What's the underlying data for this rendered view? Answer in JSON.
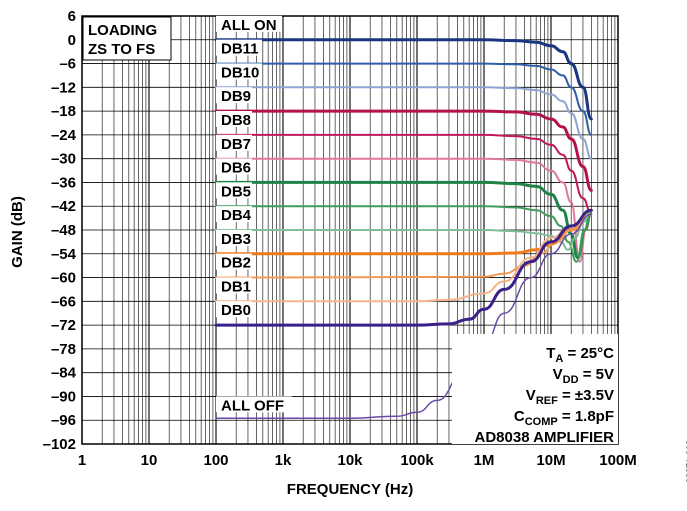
{
  "figure_id": "08271-002",
  "chart_data": {
    "type": "line",
    "title": "",
    "xlabel": "FREQUENCY (Hz)",
    "ylabel": "GAIN (dB)",
    "x_scale": "log",
    "xlim": [
      1,
      100000000
    ],
    "ylim": [
      -102,
      6
    ],
    "x_ticks": [
      1,
      10,
      100,
      1000,
      10000,
      100000,
      1000000,
      10000000,
      100000000
    ],
    "x_tick_labels": [
      "1",
      "10",
      "100",
      "1k",
      "10k",
      "100k",
      "1M",
      "10M",
      "100M"
    ],
    "y_ticks": [
      6,
      0,
      -6,
      -12,
      -18,
      -24,
      -30,
      -36,
      -42,
      -48,
      -54,
      -60,
      -66,
      -72,
      -78,
      -84,
      -90,
      -96,
      -102
    ],
    "y_tick_labels": [
      "6",
      "0",
      "–6",
      "–12",
      "–18",
      "–24",
      "–30",
      "–36",
      "–42",
      "–48",
      "–54",
      "–60",
      "–66",
      "–72",
      "–78",
      "–84",
      "–90",
      "–96",
      "–102"
    ],
    "grid": true,
    "annotation_top_left": [
      "LOADING",
      "ZS TO FS"
    ],
    "conditions": [
      {
        "main": "T",
        "sub": "A",
        "rest": " = 25°C"
      },
      {
        "main": "V",
        "sub": "DD",
        "rest": " = 5V"
      },
      {
        "main": "V",
        "sub": "REF",
        "rest": " = ±3.5V"
      },
      {
        "main": "C",
        "sub": "COMP",
        "rest": " = 1.8pF"
      },
      {
        "main": "AD8038 AMPLIFIER",
        "sub": "",
        "rest": ""
      }
    ],
    "series": [
      {
        "name": "ALL ON",
        "color": "#1a3680",
        "width": 3,
        "label_y": 3,
        "x": [
          100,
          1000000,
          3000000,
          6000000,
          10000000,
          15000000,
          20000000,
          30000000,
          40000000
        ],
        "y": [
          0,
          0,
          -0.2,
          -0.6,
          -1.5,
          -3,
          -6,
          -12,
          -20
        ]
      },
      {
        "name": "DB11",
        "color": "#2e5fa8",
        "width": 2,
        "label_y": -3,
        "x": [
          100,
          1000000,
          3000000,
          6000000,
          10000000,
          15000000,
          20000000,
          30000000,
          40000000
        ],
        "y": [
          -6,
          -6,
          -6.2,
          -6.6,
          -7.5,
          -9,
          -12,
          -18,
          -24
        ]
      },
      {
        "name": "DB10",
        "color": "#8ea4d2",
        "width": 2,
        "label_y": -9,
        "x": [
          100,
          1000000,
          3000000,
          6000000,
          10000000,
          15000000,
          20000000,
          30000000,
          40000000
        ],
        "y": [
          -12,
          -12,
          -12.2,
          -12.7,
          -13.8,
          -15.5,
          -18.5,
          -25,
          -30
        ]
      },
      {
        "name": "DB9",
        "color": "#b3124e",
        "width": 3,
        "label_y": -15,
        "x": [
          100,
          1000000,
          3000000,
          6000000,
          10000000,
          15000000,
          20000000,
          30000000,
          40000000
        ],
        "y": [
          -18,
          -18,
          -18.2,
          -18.8,
          -20,
          -22,
          -25,
          -32,
          -38
        ]
      },
      {
        "name": "DB8",
        "color": "#c2185b",
        "width": 2,
        "label_y": -21,
        "x": [
          100,
          1000000,
          3000000,
          6000000,
          10000000,
          15000000,
          20000000,
          30000000,
          40000000
        ],
        "y": [
          -24,
          -24,
          -24.3,
          -25,
          -26.5,
          -29,
          -33,
          -40,
          -44
        ]
      },
      {
        "name": "DB7",
        "color": "#e07a9a",
        "width": 2,
        "label_y": -27,
        "x": [
          100,
          1000000,
          3000000,
          6000000,
          10000000,
          15000000,
          20000000,
          27000000,
          33000000,
          40000000
        ],
        "y": [
          -30,
          -30,
          -30.3,
          -31,
          -33,
          -36,
          -41,
          -56,
          -48,
          -44
        ]
      },
      {
        "name": "DB6",
        "color": "#1e8446",
        "width": 3,
        "label_y": -33,
        "x": [
          100,
          1000000,
          3000000,
          6000000,
          10000000,
          15000000,
          20000000,
          25000000,
          32000000,
          40000000
        ],
        "y": [
          -36,
          -36,
          -36.3,
          -37,
          -39,
          -43,
          -49,
          -55,
          -48,
          -43
        ]
      },
      {
        "name": "DB5",
        "color": "#3f9c5a",
        "width": 2,
        "label_y": -39,
        "x": [
          100,
          1000000,
          3000000,
          6000000,
          10000000,
          14000000,
          18000000,
          24000000,
          32000000,
          40000000
        ],
        "y": [
          -42,
          -42,
          -42.3,
          -43,
          -44.5,
          -47,
          -51,
          -56,
          -48,
          -43
        ]
      },
      {
        "name": "DB4",
        "color": "#7fbf95",
        "width": 2,
        "label_y": -45,
        "x": [
          100,
          1000000,
          3000000,
          6000000,
          10000000,
          14000000,
          18000000,
          23000000,
          30000000,
          40000000
        ],
        "y": [
          -48,
          -48,
          -48.3,
          -48.8,
          -49.5,
          -51,
          -53,
          -50,
          -46,
          -43
        ]
      },
      {
        "name": "DB3",
        "color": "#f07a1a",
        "width": 3,
        "label_y": -51,
        "x": [
          100,
          1000000,
          3000000,
          6000000,
          10000000,
          20000000,
          40000000
        ],
        "y": [
          -54,
          -54,
          -53.8,
          -53,
          -51.5,
          -48,
          -43
        ]
      },
      {
        "name": "DB2",
        "color": "#f39a55",
        "width": 2,
        "label_y": -57,
        "x": [
          100,
          1000000,
          2000000,
          4000000,
          7000000,
          12000000,
          20000000,
          40000000
        ],
        "y": [
          -60,
          -59.8,
          -59,
          -57,
          -54,
          -51,
          -48,
          -43
        ]
      },
      {
        "name": "DB1",
        "color": "#f5b48a",
        "width": 2,
        "label_y": -63,
        "x": [
          100,
          100000,
          300000,
          1000000,
          2000000,
          5000000,
          10000000,
          20000000,
          40000000
        ],
        "y": [
          -66,
          -66,
          -65.6,
          -64,
          -61,
          -55,
          -50,
          -47,
          -43
        ]
      },
      {
        "name": "DB0",
        "color": "#3b1f8a",
        "width": 3,
        "label_y": -69,
        "x": [
          100,
          100000,
          300000,
          600000,
          1000000,
          2000000,
          5000000,
          10000000,
          20000000,
          40000000
        ],
        "y": [
          -72,
          -72,
          -71.7,
          -70.5,
          -68,
          -63,
          -56,
          -51,
          -47,
          -43
        ]
      },
      {
        "name": "ALL OFF",
        "color": "#6a4aa8",
        "width": 1.5,
        "label_y": -93,
        "x": [
          100,
          10000,
          50000,
          100000,
          200000,
          500000,
          1000000,
          2000000,
          5000000,
          10000000,
          20000000,
          40000000
        ],
        "y": [
          -95.5,
          -95.5,
          -95,
          -94,
          -91,
          -84,
          -77,
          -69,
          -60,
          -54,
          -49,
          -44
        ]
      }
    ]
  }
}
